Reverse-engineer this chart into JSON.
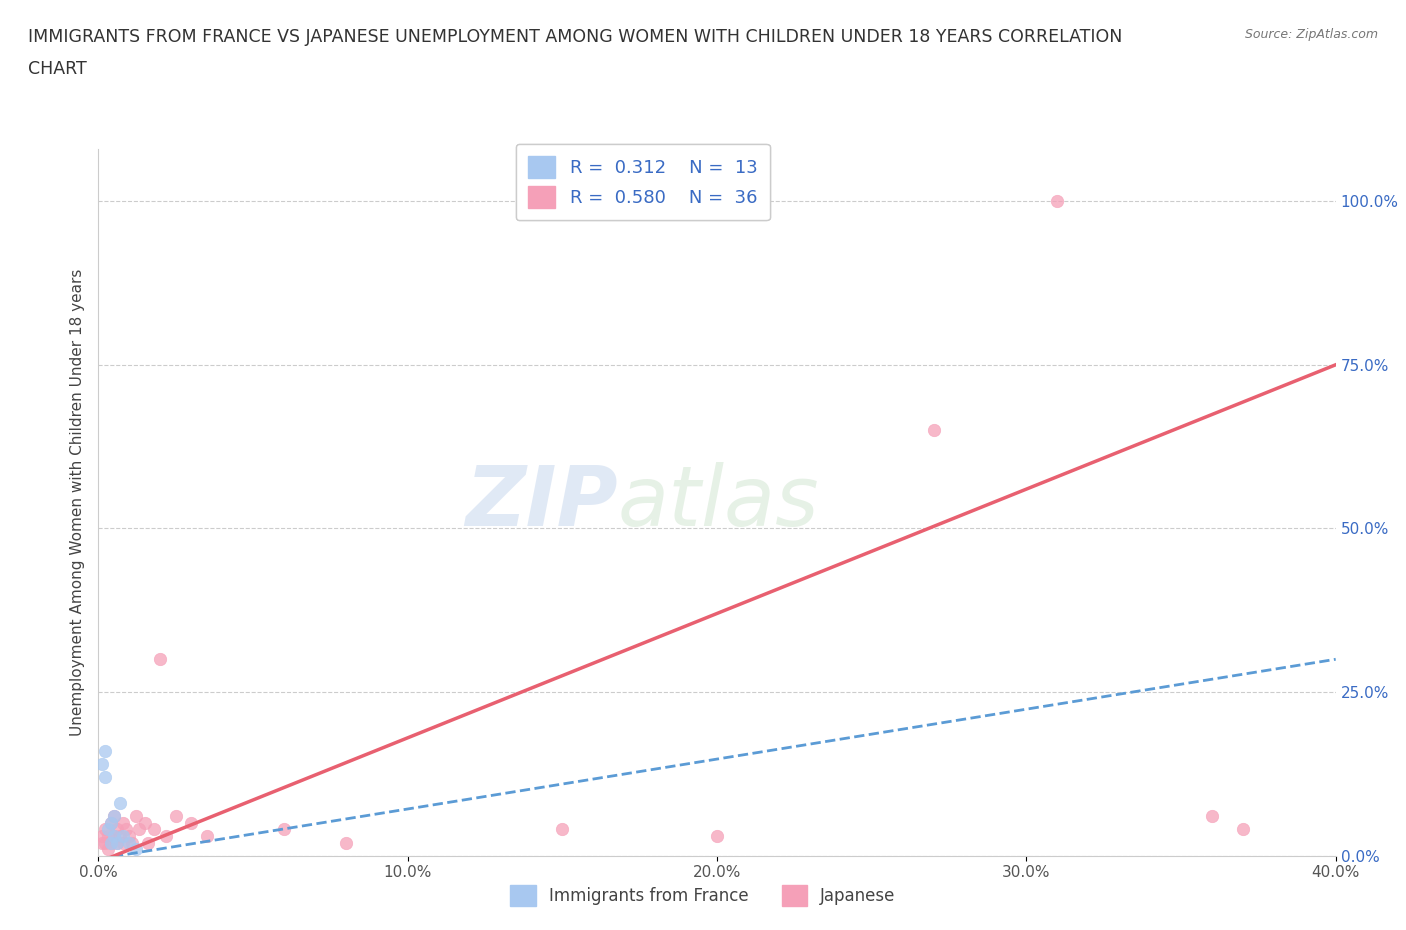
{
  "title_line1": "IMMIGRANTS FROM FRANCE VS JAPANESE UNEMPLOYMENT AMONG WOMEN WITH CHILDREN UNDER 18 YEARS CORRELATION",
  "title_line2": "CHART",
  "source": "Source: ZipAtlas.com",
  "ylabel": "Unemployment Among Women with Children Under 18 years",
  "xlim": [
    0.0,
    0.4
  ],
  "ylim": [
    0.0,
    1.08
  ],
  "xticks": [
    0.0,
    0.1,
    0.2,
    0.3,
    0.4
  ],
  "xticklabels": [
    "0.0%",
    "10.0%",
    "20.0%",
    "30.0%",
    "40.0%"
  ],
  "ytick_positions": [
    0.0,
    0.25,
    0.5,
    0.75,
    1.0
  ],
  "yticklabels": [
    "0.0%",
    "25.0%",
    "50.0%",
    "75.0%",
    "100.0%"
  ],
  "france_color": "#a8c8f0",
  "japan_color": "#f5a0b8",
  "france_line_color": "#5b9bd5",
  "japan_line_color": "#e86070",
  "france_R": 0.312,
  "france_N": 13,
  "japan_R": 0.58,
  "japan_N": 36,
  "watermark_zip": "ZIP",
  "watermark_atlas": "atlas",
  "france_trend_x0": 0.0,
  "france_trend_y0": -0.005,
  "france_trend_x1": 0.4,
  "france_trend_y1": 0.3,
  "japan_trend_x0": 0.0,
  "japan_trend_y0": -0.01,
  "japan_trend_x1": 0.4,
  "japan_trend_y1": 0.75,
  "france_scatter_x": [
    0.001,
    0.002,
    0.002,
    0.003,
    0.004,
    0.004,
    0.005,
    0.005,
    0.006,
    0.007,
    0.008,
    0.01,
    0.012
  ],
  "france_scatter_y": [
    0.14,
    0.16,
    0.12,
    0.04,
    0.05,
    0.02,
    0.03,
    0.06,
    0.02,
    0.08,
    0.03,
    0.02,
    0.01
  ],
  "japan_scatter_x": [
    0.001,
    0.001,
    0.002,
    0.002,
    0.003,
    0.003,
    0.004,
    0.004,
    0.005,
    0.005,
    0.006,
    0.006,
    0.007,
    0.008,
    0.008,
    0.009,
    0.01,
    0.011,
    0.012,
    0.013,
    0.015,
    0.016,
    0.018,
    0.02,
    0.022,
    0.025,
    0.03,
    0.035,
    0.06,
    0.08,
    0.15,
    0.2,
    0.27,
    0.31,
    0.36,
    0.37
  ],
  "japan_scatter_y": [
    0.02,
    0.03,
    0.04,
    0.02,
    0.01,
    0.03,
    0.05,
    0.02,
    0.06,
    0.03,
    0.04,
    0.02,
    0.03,
    0.05,
    0.02,
    0.04,
    0.03,
    0.02,
    0.06,
    0.04,
    0.05,
    0.02,
    0.04,
    0.3,
    0.03,
    0.06,
    0.05,
    0.03,
    0.04,
    0.02,
    0.04,
    0.03,
    0.65,
    1.0,
    0.06,
    0.04
  ],
  "legend_blue_label": "Immigrants from France",
  "legend_pink_label": "Japanese",
  "background_color": "#ffffff",
  "grid_color": "#cccccc",
  "legend_text_color": "#3a6bc4"
}
